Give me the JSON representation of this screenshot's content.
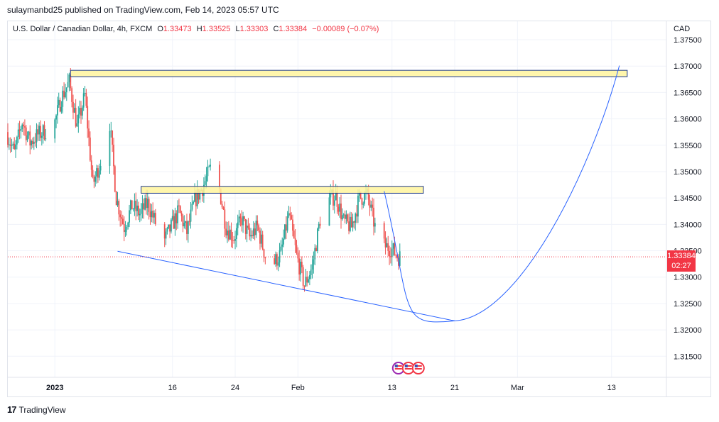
{
  "header": {
    "publisher_line": "sulaymanbd25 published on TradingView.com, Feb 14, 2023 05:57 UTC"
  },
  "legend": {
    "symbol": "U.S. Dollar / Canadian Dollar, 4h, FXCM",
    "open_label": "O",
    "open": "1.33473",
    "high_label": "H",
    "high": "1.33525",
    "low_label": "L",
    "low": "1.33303",
    "close_label": "C",
    "close": "1.33384",
    "change": "−0.00089 (−0.07%)"
  },
  "currency_label": "CAD",
  "price_tag": {
    "price": "1.33384",
    "countdown": "02:27"
  },
  "footer": {
    "brand": "TradingView"
  },
  "colors": {
    "up": "#26a69a",
    "down": "#ef5350",
    "trendline": "#2962ff",
    "zone_fill": "#fff59d",
    "zone_border": "#1e3a8a",
    "last_price": "#f23645",
    "grid": "#f0f3fa"
  },
  "chart_data": {
    "type": "candlestick",
    "symbol": "USDCAD",
    "timeframe": "4h",
    "ylim": [
      1.311,
      1.3785
    ],
    "y_ticks": [
      "1.37500",
      "1.37000",
      "1.36500",
      "1.36000",
      "1.35500",
      "1.35000",
      "1.34500",
      "1.34000",
      "1.33500",
      "1.33000",
      "1.32500",
      "1.32000",
      "1.31500"
    ],
    "x_ticks": [
      {
        "label": "2023",
        "date": "2023-01-01"
      },
      {
        "label": "16",
        "date": "2023-01-16"
      },
      {
        "label": "24",
        "date": "2023-01-24"
      },
      {
        "label": "Feb",
        "date": "2023-02-01"
      },
      {
        "label": "13",
        "date": "2023-02-13"
      },
      {
        "label": "21",
        "date": "2023-02-21"
      },
      {
        "label": "Mar",
        "date": "2023-03-01"
      },
      {
        "label": "13",
        "date": "2023-03-13"
      }
    ],
    "x_range": [
      "2022-12-26",
      "2023-03-20"
    ],
    "last_price": 1.33384,
    "price_path": [
      [
        "2022-12-26",
        1.3575
      ],
      [
        "2022-12-27",
        1.3535
      ],
      [
        "2022-12-28",
        1.3595
      ],
      [
        "2022-12-29",
        1.3555
      ],
      [
        "2022-12-30",
        1.357
      ],
      [
        "2023-01-01",
        1.3585
      ],
      [
        "2023-01-02",
        1.364
      ],
      [
        "2023-01-03",
        1.367
      ],
      [
        "2023-01-04",
        1.3585
      ],
      [
        "2023-01-05",
        1.3645
      ],
      [
        "2023-01-06",
        1.3475
      ],
      [
        "2023-01-07",
        1.352
      ],
      [
        "2023-01-08",
        1.362
      ],
      [
        "2023-01-09",
        1.345
      ],
      [
        "2023-01-10",
        1.3395
      ],
      [
        "2023-01-11",
        1.3435
      ],
      [
        "2023-01-12",
        1.342
      ],
      [
        "2023-01-13",
        1.344
      ],
      [
        "2023-01-15",
        1.3365
      ],
      [
        "2023-01-16",
        1.3395
      ],
      [
        "2023-01-17",
        1.3425
      ],
      [
        "2023-01-18",
        1.3385
      ],
      [
        "2023-01-19",
        1.3445
      ],
      [
        "2023-01-20",
        1.347
      ],
      [
        "2023-01-21",
        1.3505
      ],
      [
        "2023-01-22",
        1.348
      ],
      [
        "2023-01-23",
        1.3395
      ],
      [
        "2023-01-24",
        1.3375
      ],
      [
        "2023-01-25",
        1.341
      ],
      [
        "2023-01-26",
        1.3375
      ],
      [
        "2023-01-27",
        1.3395
      ],
      [
        "2023-01-28",
        1.334
      ],
      [
        "2023-01-29",
        1.3325
      ],
      [
        "2023-01-30",
        1.3345
      ],
      [
        "2023-01-31",
        1.342
      ],
      [
        "2023-02-01",
        1.334
      ],
      [
        "2023-02-02",
        1.3285
      ],
      [
        "2023-02-03",
        1.332
      ],
      [
        "2023-02-04",
        1.341
      ],
      [
        "2023-02-05",
        1.3445
      ],
      [
        "2023-02-06",
        1.3455
      ],
      [
        "2023-02-07",
        1.3405
      ],
      [
        "2023-02-08",
        1.3395
      ],
      [
        "2023-02-09",
        1.345
      ],
      [
        "2023-02-10",
        1.3455
      ],
      [
        "2023-02-11",
        1.3395
      ],
      [
        "2023-02-12",
        1.336
      ],
      [
        "2023-02-13",
        1.3355
      ],
      [
        "2023-02-14",
        1.33384
      ]
    ],
    "zones": [
      {
        "from": "2023-01-03",
        "to": "2023-03-15",
        "price_low": 1.368,
        "price_high": 1.3692
      },
      {
        "from": "2023-01-12",
        "to": "2023-02-17",
        "price_low": 1.3459,
        "price_high": 1.3472
      }
    ],
    "trendlines": [
      {
        "points": [
          [
            "2023-01-09",
            1.3349
          ],
          [
            "2023-02-21",
            1.3217
          ]
        ]
      },
      {
        "points": [
          [
            "2023-02-12",
            1.3463
          ],
          [
            "2023-02-21",
            1.3217
          ],
          [
            "2023-03-14",
            1.3701
          ]
        ]
      }
    ],
    "events": [
      {
        "date": "2023-02-14",
        "count": 3,
        "type": "economic-event"
      }
    ]
  }
}
